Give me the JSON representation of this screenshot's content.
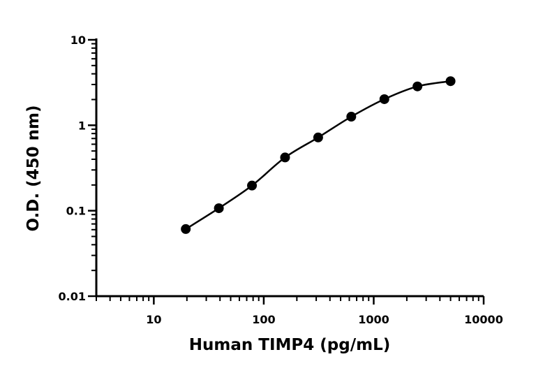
{
  "chart_data": {
    "type": "scatter",
    "title": "",
    "xlabel": "Human TIMP4 (pg/mL)",
    "ylabel": "O.D. (450 nm)",
    "x_scale": "log",
    "y_scale": "log",
    "xlim": [
      3,
      10000
    ],
    "ylim": [
      0.01,
      10
    ],
    "x_tick_values": [
      10,
      100,
      1000,
      10000
    ],
    "x_tick_labels": [
      "10",
      "100",
      "1000",
      "10000"
    ],
    "y_tick_values": [
      0.01,
      0.1,
      1,
      10
    ],
    "y_tick_labels": [
      "0.01",
      "0.1",
      "1",
      "10"
    ],
    "grid": false,
    "legend": "none",
    "series": [
      {
        "x": [
          19.53,
          39.06,
          78.13,
          156.25,
          312.5,
          625,
          1250,
          2500,
          5000
        ],
        "y": [
          0.061,
          0.107,
          0.197,
          0.42,
          0.72,
          1.26,
          2.02,
          2.85,
          3.28
        ],
        "marker": "circle",
        "fit_curve": true,
        "color": "#000000"
      }
    ]
  }
}
